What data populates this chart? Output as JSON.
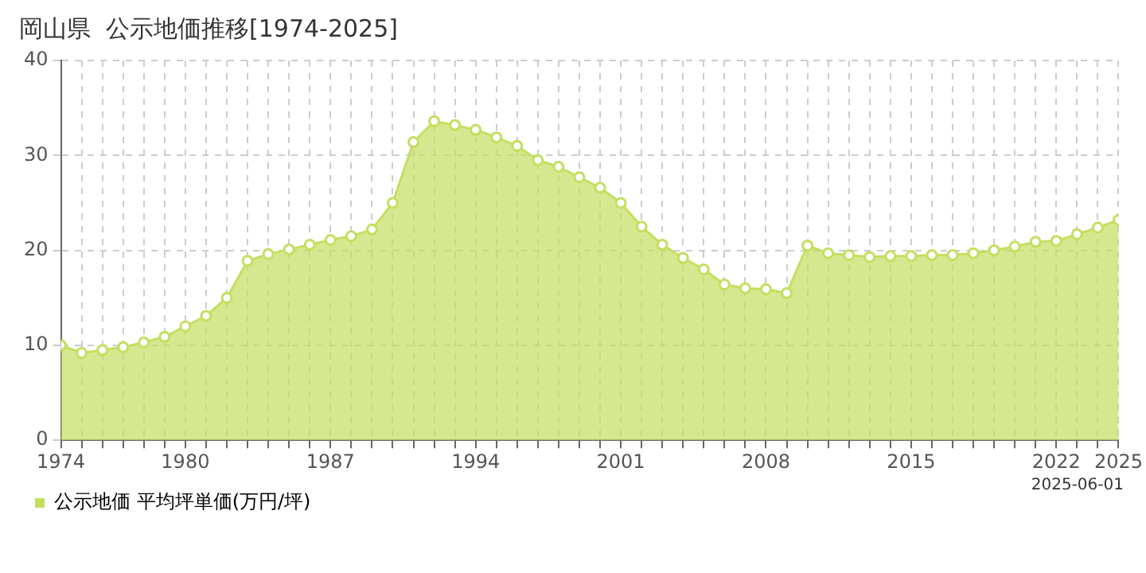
{
  "chart_data": {
    "type": "area",
    "title": "岡山県  公示地価推移[1974-2025]",
    "x": [
      1974,
      1975,
      1976,
      1977,
      1978,
      1979,
      1980,
      1981,
      1982,
      1983,
      1984,
      1985,
      1986,
      1987,
      1988,
      1989,
      1990,
      1991,
      1992,
      1993,
      1994,
      1995,
      1996,
      1997,
      1998,
      1999,
      2000,
      2001,
      2002,
      2003,
      2004,
      2005,
      2006,
      2007,
      2008,
      2009,
      2010,
      2011,
      2012,
      2013,
      2014,
      2015,
      2016,
      2017,
      2018,
      2019,
      2020,
      2021,
      2022,
      2023,
      2024,
      2025
    ],
    "series": [
      {
        "name": "公示地価 平均坪単価(万円/坪)",
        "color": "#c5de5f",
        "values": [
          10.0,
          9.2,
          9.5,
          9.8,
          10.3,
          10.9,
          12.0,
          13.1,
          15.0,
          18.9,
          19.6,
          20.1,
          20.6,
          21.1,
          21.5,
          22.2,
          25.0,
          31.4,
          33.6,
          33.2,
          32.7,
          31.9,
          31.0,
          29.5,
          28.8,
          27.7,
          26.6,
          25.0,
          22.5,
          20.6,
          19.2,
          18.0,
          16.4,
          16.0,
          15.9,
          15.5,
          20.5,
          19.7,
          19.5,
          19.3,
          19.4,
          19.4,
          19.5,
          19.5,
          19.7,
          20.0,
          20.4,
          20.9,
          21.0,
          21.7,
          22.4,
          23.2
        ]
      }
    ],
    "xlim": [
      1974,
      2025
    ],
    "xticks": [
      1974,
      {
        "value": 1975,
        "label": null
      },
      {
        "value": 1976,
        "label": null
      },
      {
        "value": 1977,
        "label": null
      },
      {
        "value": 1978,
        "label": null
      },
      {
        "value": 1979,
        "label": null
      },
      1980,
      {
        "value": 1981,
        "label": null
      },
      {
        "value": 1982,
        "label": null
      },
      {
        "value": 1983,
        "label": null
      },
      {
        "value": 1984,
        "label": null
      },
      {
        "value": 1985,
        "label": null
      },
      {
        "value": 1986,
        "label": null
      },
      1987,
      {
        "value": 1988,
        "label": null
      },
      {
        "value": 1989,
        "label": null
      },
      {
        "value": 1990,
        "label": null
      },
      {
        "value": 1991,
        "label": null
      },
      {
        "value": 1992,
        "label": null
      },
      {
        "value": 1993,
        "label": null
      },
      1994,
      {
        "value": 1995,
        "label": null
      },
      {
        "value": 1996,
        "label": null
      },
      {
        "value": 1997,
        "label": null
      },
      {
        "value": 1998,
        "label": null
      },
      {
        "value": 1999,
        "label": null
      },
      {
        "value": 2000,
        "label": null
      },
      2001,
      {
        "value": 2002,
        "label": null
      },
      {
        "value": 2003,
        "label": null
      },
      {
        "value": 2004,
        "label": null
      },
      {
        "value": 2005,
        "label": null
      },
      {
        "value": 2006,
        "label": null
      },
      {
        "value": 2007,
        "label": null
      },
      2008,
      {
        "value": 2009,
        "label": null
      },
      {
        "value": 2010,
        "label": null
      },
      {
        "value": 2011,
        "label": null
      },
      {
        "value": 2012,
        "label": null
      },
      {
        "value": 2013,
        "label": null
      },
      {
        "value": 2014,
        "label": null
      },
      2015,
      {
        "value": 2016,
        "label": null
      },
      {
        "value": 2017,
        "label": null
      },
      {
        "value": 2018,
        "label": null
      },
      {
        "value": 2019,
        "label": null
      },
      {
        "value": 2020,
        "label": null
      },
      {
        "value": 2021,
        "label": null
      },
      2022,
      {
        "value": 2023,
        "label": null
      },
      {
        "value": 2024,
        "label": null
      },
      2025
    ],
    "ylim": [
      0,
      40
    ],
    "yticks": [
      0,
      10,
      20,
      30,
      40
    ],
    "grid": true,
    "legend": "bottom left",
    "marker": "circle",
    "line_style": "solid",
    "annotations": [
      "2025-06-01"
    ]
  }
}
